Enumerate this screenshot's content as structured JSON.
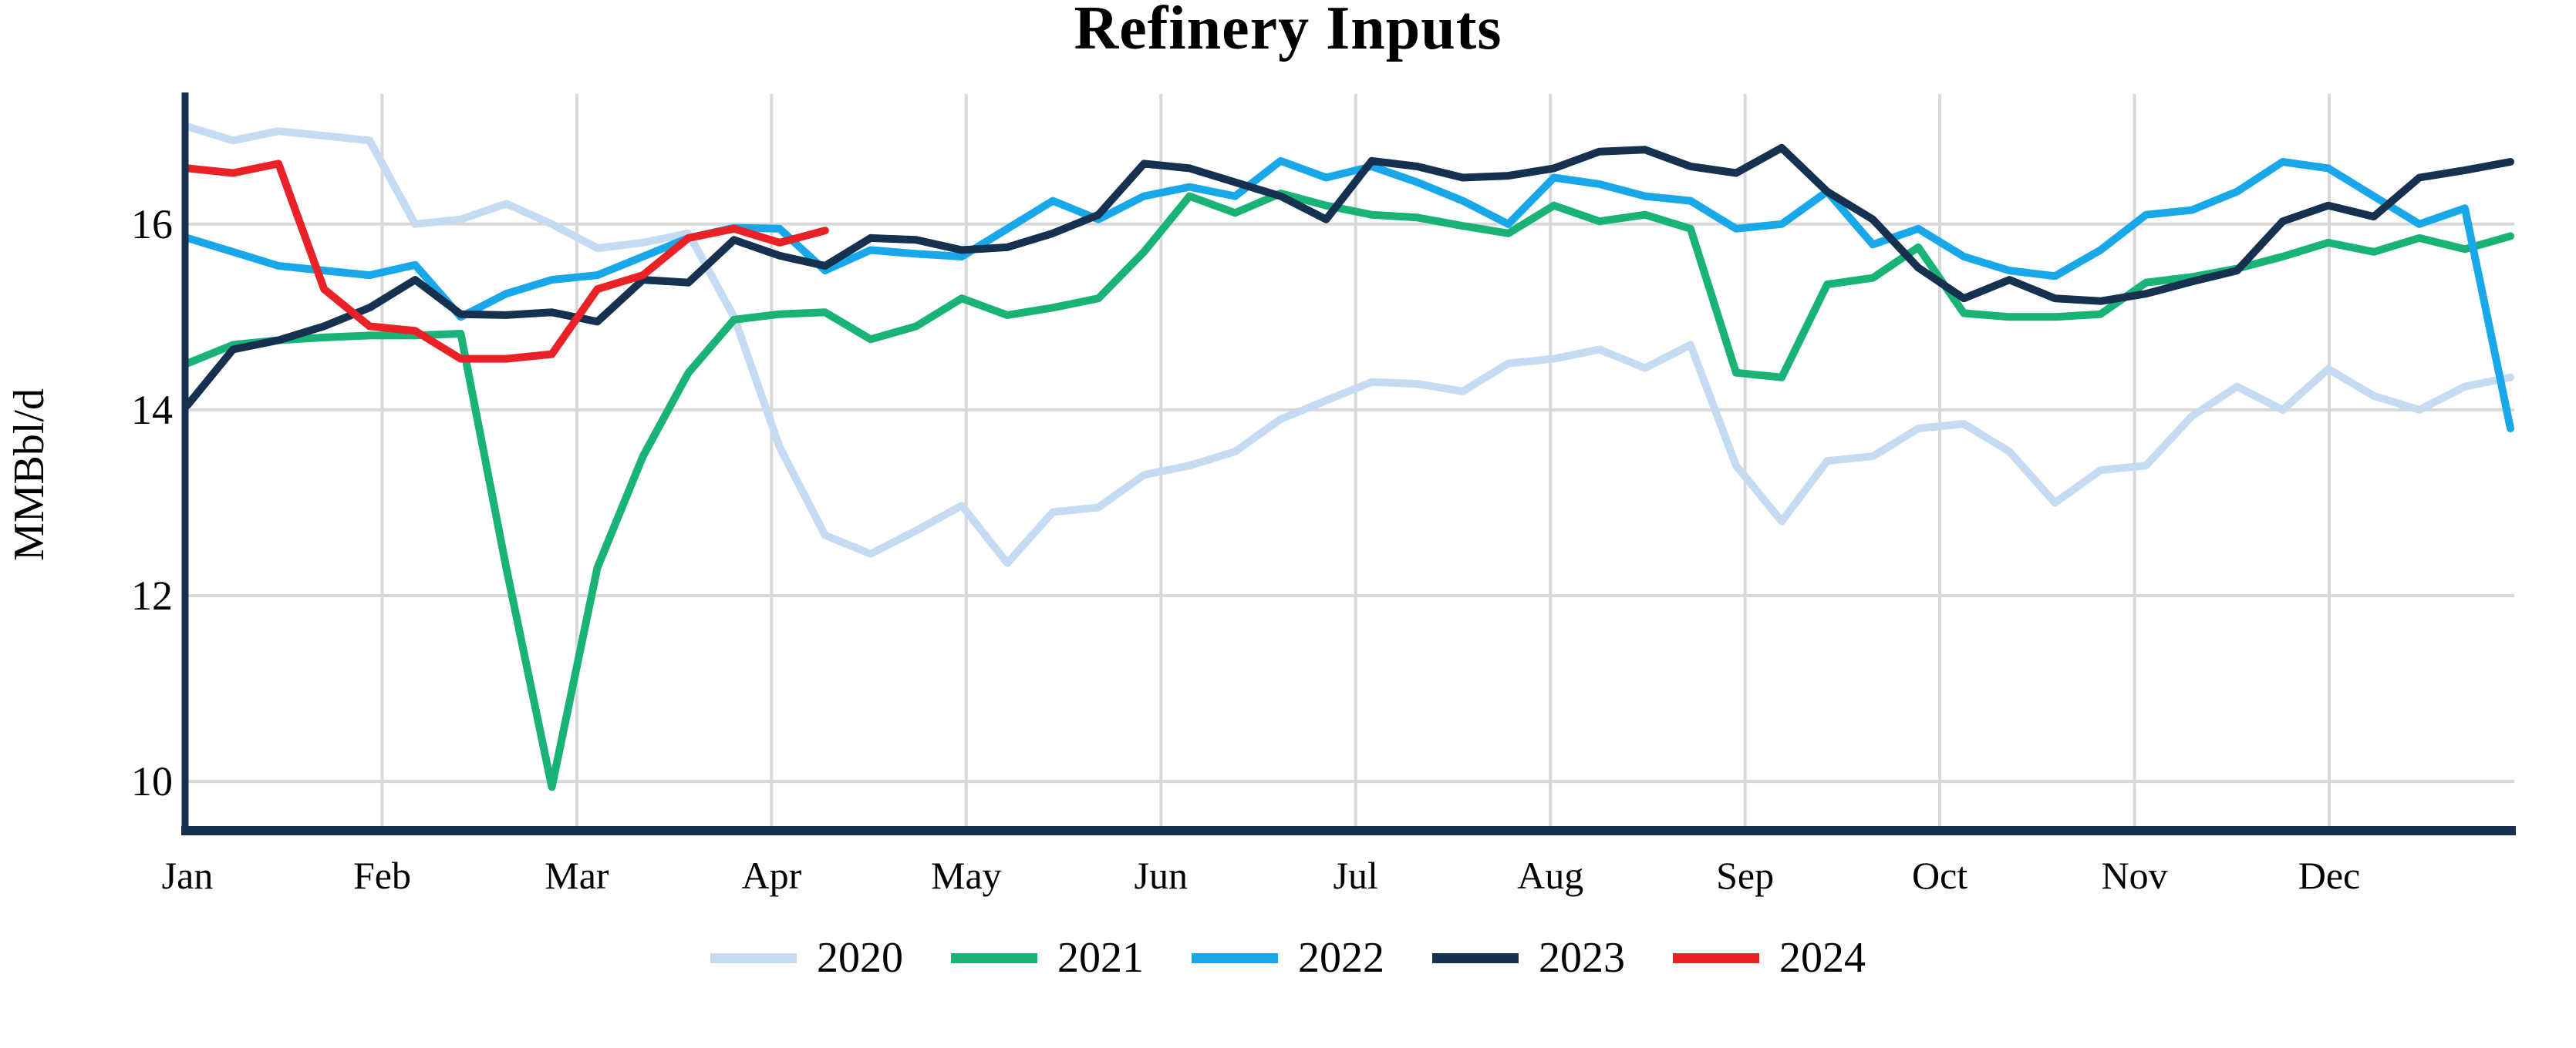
{
  "title": "Refinery Inputs",
  "y_axis": {
    "label": "MMBbl/d"
  },
  "chart_data": {
    "type": "line",
    "title": "Refinery Inputs",
    "ylabel": "MMBbl/d",
    "x_unit": "week-of-year",
    "xticklabels": [
      "Jan",
      "Feb",
      "Mar",
      "Apr",
      "May",
      "Jun",
      "Jul",
      "Aug",
      "Sep",
      "Oct",
      "Nov",
      "Dec"
    ],
    "yticks": [
      10,
      12,
      14,
      16
    ],
    "ylim": [
      9.47,
      17.4
    ],
    "grid": true,
    "legend_position": "bottom",
    "axis_color": "#16304F",
    "grid_color": "#D8D8D8",
    "series": [
      {
        "name": "2020",
        "color": "#C5DBF1",
        "values": [
          17.05,
          16.9,
          17.0,
          16.95,
          16.9,
          16.0,
          16.05,
          16.22,
          16.0,
          15.74,
          15.8,
          15.9,
          15.0,
          13.6,
          12.65,
          12.45,
          12.7,
          12.97,
          12.35,
          12.9,
          12.95,
          13.3,
          13.4,
          13.55,
          13.9,
          14.1,
          14.3,
          14.28,
          14.2,
          14.5,
          14.55,
          14.65,
          14.45,
          14.7,
          13.4,
          12.8,
          13.45,
          13.5,
          13.8,
          13.85,
          13.55,
          13.0,
          13.35,
          13.4,
          13.93,
          14.25,
          14.0,
          14.44,
          14.15,
          14.0,
          14.25,
          14.35
        ]
      },
      {
        "name": "2021",
        "color": "#19B277",
        "values": [
          14.5,
          14.7,
          14.75,
          14.78,
          14.8,
          14.8,
          14.82,
          12.3,
          9.94,
          12.3,
          13.5,
          14.4,
          14.97,
          15.03,
          15.05,
          14.76,
          14.9,
          15.2,
          15.02,
          15.1,
          15.2,
          15.7,
          16.3,
          16.12,
          16.33,
          16.2,
          16.1,
          16.07,
          15.98,
          15.9,
          16.2,
          16.03,
          16.1,
          15.95,
          14.4,
          14.35,
          15.35,
          15.42,
          15.75,
          15.04,
          15.0,
          15.0,
          15.03,
          15.37,
          15.43,
          15.52,
          15.65,
          15.8,
          15.7,
          15.85,
          15.73,
          15.87
        ]
      },
      {
        "name": "2022",
        "color": "#18A8EA",
        "values": [
          15.85,
          15.7,
          15.55,
          15.5,
          15.45,
          15.56,
          15.0,
          15.25,
          15.4,
          15.45,
          15.65,
          15.85,
          15.96,
          15.95,
          15.5,
          15.72,
          15.68,
          15.65,
          15.95,
          16.25,
          16.05,
          16.3,
          16.4,
          16.3,
          16.68,
          16.5,
          16.62,
          16.45,
          16.25,
          16.0,
          16.5,
          16.43,
          16.3,
          16.25,
          15.95,
          16.0,
          16.35,
          15.78,
          15.95,
          15.65,
          15.5,
          15.44,
          15.72,
          16.1,
          16.15,
          16.35,
          16.67,
          16.6,
          16.3,
          16.0,
          16.17,
          13.8
        ]
      },
      {
        "name": "2023",
        "color": "#16304F",
        "values": [
          14.05,
          14.65,
          14.75,
          14.9,
          15.1,
          15.4,
          15.03,
          15.02,
          15.05,
          14.95,
          15.4,
          15.37,
          15.83,
          15.66,
          15.55,
          15.85,
          15.83,
          15.72,
          15.75,
          15.9,
          16.1,
          16.65,
          16.6,
          16.45,
          16.3,
          16.05,
          16.68,
          16.62,
          16.5,
          16.52,
          16.6,
          16.78,
          16.8,
          16.62,
          16.55,
          16.82,
          16.35,
          16.05,
          15.53,
          15.2,
          15.4,
          15.2,
          15.17,
          15.25,
          15.38,
          15.5,
          16.03,
          16.2,
          16.08,
          16.5,
          16.58,
          16.67
        ]
      },
      {
        "name": "2024",
        "color": "#EA2127",
        "values": [
          16.6,
          16.55,
          16.65,
          15.3,
          14.9,
          14.85,
          14.55,
          14.55,
          14.6,
          15.3,
          15.45,
          15.85,
          15.95,
          15.8,
          15.93
        ]
      }
    ]
  }
}
